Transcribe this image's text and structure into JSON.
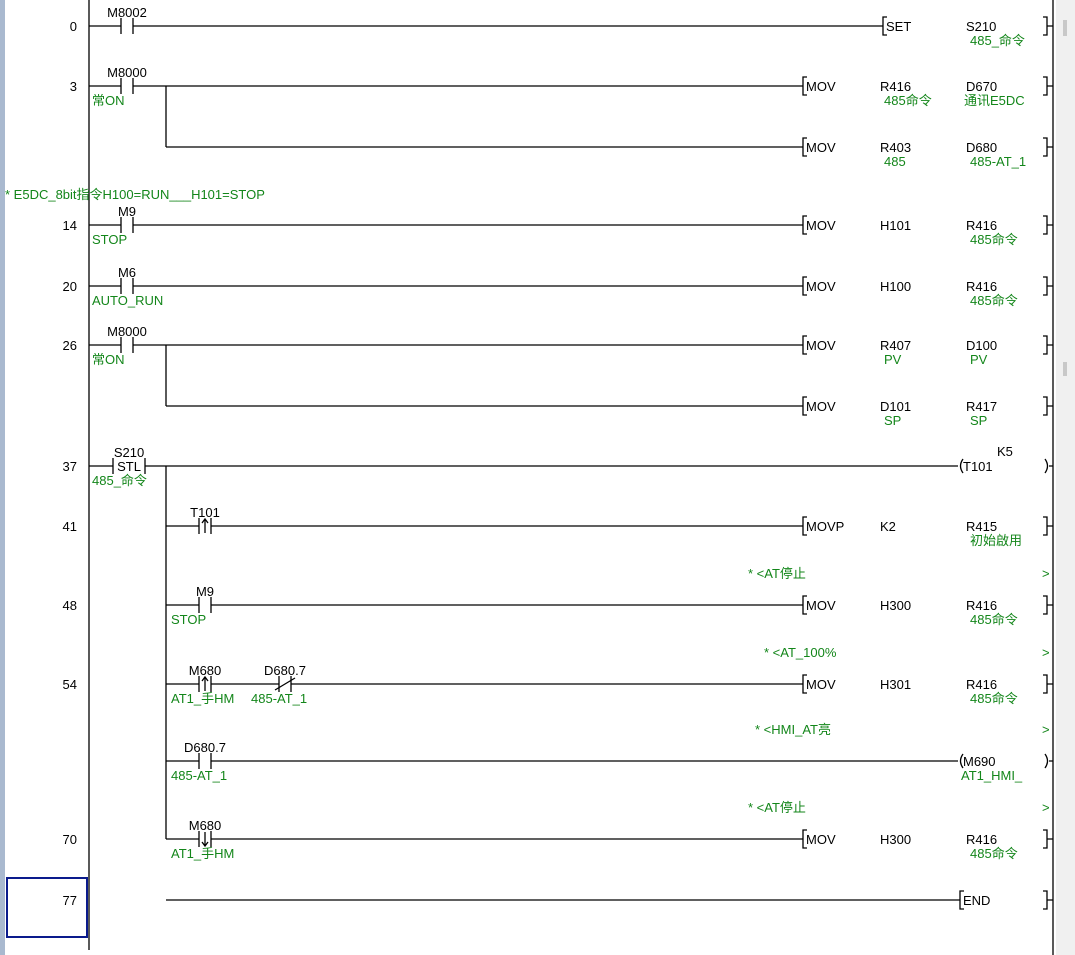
{
  "colors": {
    "wire": "#000000",
    "comment": "#13861a",
    "cursor": "#0a1a8c",
    "frame": "#a9b9cf"
  },
  "statement": "* E5DC_8bit指令H100=RUN___H101=STOP",
  "rows": [
    {
      "step": "0",
      "contacts": [
        {
          "device": "M8002",
          "type": "no"
        }
      ],
      "output": {
        "kind": "apply",
        "name": "SET",
        "operands": [
          {
            "device": "S210"
          },
          {
            "device": "",
            "comment": ""
          }
        ],
        "target": {
          "device": "S210",
          "comment": "485_命令"
        }
      }
    },
    {
      "step": "3",
      "contacts": [
        {
          "device": "M8000",
          "comment": "常ON",
          "type": "no"
        }
      ],
      "output": {
        "kind": "apply",
        "name": "MOV",
        "operands": [
          {
            "device": "R416",
            "comment": "485命令"
          },
          {
            "device": "D670",
            "comment": "通讯E5DC"
          }
        ]
      }
    },
    {
      "step": "",
      "branch": true,
      "output": {
        "kind": "apply",
        "name": "MOV",
        "operands": [
          {
            "device": "R403",
            "comment": "485"
          },
          {
            "device": "D680",
            "comment": "485-AT_1"
          }
        ]
      }
    },
    {
      "step": "14",
      "contacts": [
        {
          "device": "M9",
          "comment": "STOP",
          "type": "no"
        }
      ],
      "output": {
        "kind": "apply",
        "name": "MOV",
        "operands": [
          {
            "device": "H101"
          },
          {
            "device": "R416",
            "comment": "485命令"
          }
        ]
      }
    },
    {
      "step": "20",
      "contacts": [
        {
          "device": "M6",
          "comment": "AUTO_RUN",
          "type": "no"
        }
      ],
      "output": {
        "kind": "apply",
        "name": "MOV",
        "operands": [
          {
            "device": "H100"
          },
          {
            "device": "R416",
            "comment": "485命令"
          }
        ]
      }
    },
    {
      "step": "26",
      "contacts": [
        {
          "device": "M8000",
          "comment": "常ON",
          "type": "no"
        }
      ],
      "output": {
        "kind": "apply",
        "name": "MOV",
        "operands": [
          {
            "device": "R407",
            "comment": "PV"
          },
          {
            "device": "D100",
            "comment": "PV"
          }
        ]
      }
    },
    {
      "step": "",
      "branch": true,
      "output": {
        "kind": "apply",
        "name": "MOV",
        "operands": [
          {
            "device": "D101",
            "comment": "SP"
          },
          {
            "device": "R417",
            "comment": "SP"
          }
        ]
      }
    },
    {
      "step": "37",
      "contacts": [
        {
          "device": "S210",
          "comment": "485_命令",
          "type": "stl",
          "label": "STL"
        }
      ],
      "output": {
        "kind": "coil",
        "device": "T101",
        "setting": "K5"
      }
    },
    {
      "step": "41",
      "contacts": [
        {
          "device": "T101",
          "type": "rise"
        }
      ],
      "output": {
        "kind": "apply",
        "name": "MOVP",
        "operands": [
          {
            "device": "K2"
          },
          {
            "device": "R415",
            "comment": "初始啟用"
          }
        ]
      }
    },
    {
      "step": "48",
      "note": "* <AT停止",
      "contacts": [
        {
          "device": "M9",
          "comment": "STOP",
          "type": "no"
        }
      ],
      "output": {
        "kind": "apply",
        "name": "MOV",
        "operands": [
          {
            "device": "H300"
          },
          {
            "device": "R416",
            "comment": "485命令"
          }
        ]
      }
    },
    {
      "step": "54",
      "note": "* <AT_100%",
      "contacts": [
        {
          "device": "M680",
          "comment": "AT1_手HM",
          "type": "rise"
        },
        {
          "device": "D680.7",
          "comment": "485-AT_1",
          "type": "nc"
        }
      ],
      "output": {
        "kind": "apply",
        "name": "MOV",
        "operands": [
          {
            "device": "H301"
          },
          {
            "device": "R416",
            "comment": "485命令"
          }
        ]
      }
    },
    {
      "step": "",
      "note": "* <HMI_AT亮",
      "contacts": [
        {
          "device": "D680.7",
          "comment": "485-AT_1",
          "type": "no"
        }
      ],
      "output": {
        "kind": "coil",
        "device": "M690",
        "comment": "AT1_HMI_"
      }
    },
    {
      "step": "70",
      "note": "* <AT停止",
      "contacts": [
        {
          "device": "M680",
          "comment": "AT1_手HM",
          "type": "fall"
        }
      ],
      "output": {
        "kind": "apply",
        "name": "MOV",
        "operands": [
          {
            "device": "H300"
          },
          {
            "device": "R416",
            "comment": "485命令"
          }
        ]
      }
    },
    {
      "step": "77",
      "selected": true,
      "output": {
        "kind": "apply",
        "name": "END",
        "operands": []
      }
    }
  ]
}
